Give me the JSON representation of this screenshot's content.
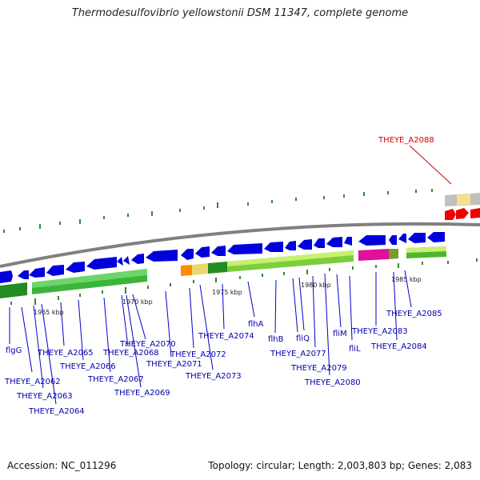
{
  "title": "Thermodesulfovibrio yellowstonii DSM 11347, complete genome",
  "footer": {
    "accession": "Accession: NC_011296",
    "summary": "Topology: circular; Length: 2,003,803 bp; Genes: 2,083"
  },
  "highlight": {
    "label": "THEYE_A2088",
    "color": "#cc0000"
  },
  "ticks": [
    "1965 kbp",
    "1970 kbp",
    "1975 kbp",
    "1980 kbp",
    "1985 kbp"
  ],
  "genes": [
    {
      "label": "flgG"
    },
    {
      "label": "THEYE_A2062"
    },
    {
      "label": "THEYE_A2063"
    },
    {
      "label": "THEYE_A2064"
    },
    {
      "label": "THEYE_A2065"
    },
    {
      "label": "THEYE_A2066"
    },
    {
      "label": "THEYE_A2067"
    },
    {
      "label": "THEYE_A2068"
    },
    {
      "label": "THEYE_A2069"
    },
    {
      "label": "THEYE_A2070"
    },
    {
      "label": "THEYE_A2071"
    },
    {
      "label": "THEYE_A2072"
    },
    {
      "label": "THEYE_A2073"
    },
    {
      "label": "THEYE_A2074"
    },
    {
      "label": "flhA"
    },
    {
      "label": "flhB"
    },
    {
      "label": "fliQ"
    },
    {
      "label": "THEYE_A2077"
    },
    {
      "label": "THEYE_A2079"
    },
    {
      "label": "THEYE_A2080"
    },
    {
      "label": "fliM"
    },
    {
      "label": "fliL"
    },
    {
      "label": "THEYE_A2083"
    },
    {
      "label": "THEYE_A2084"
    },
    {
      "label": "THEYE_A2085"
    }
  ],
  "colors": {
    "backbone": "#808080",
    "cds": "#0000dd",
    "green": "#228b22",
    "lightgreen": "#7ccd3c",
    "paleyellow": "#d8e060",
    "orange": "#ff8c00",
    "magenta": "#e0109a",
    "red": "#ee0000",
    "gray": "#c0c0c0",
    "tan": "#f0e090",
    "label": "#0000aa"
  }
}
